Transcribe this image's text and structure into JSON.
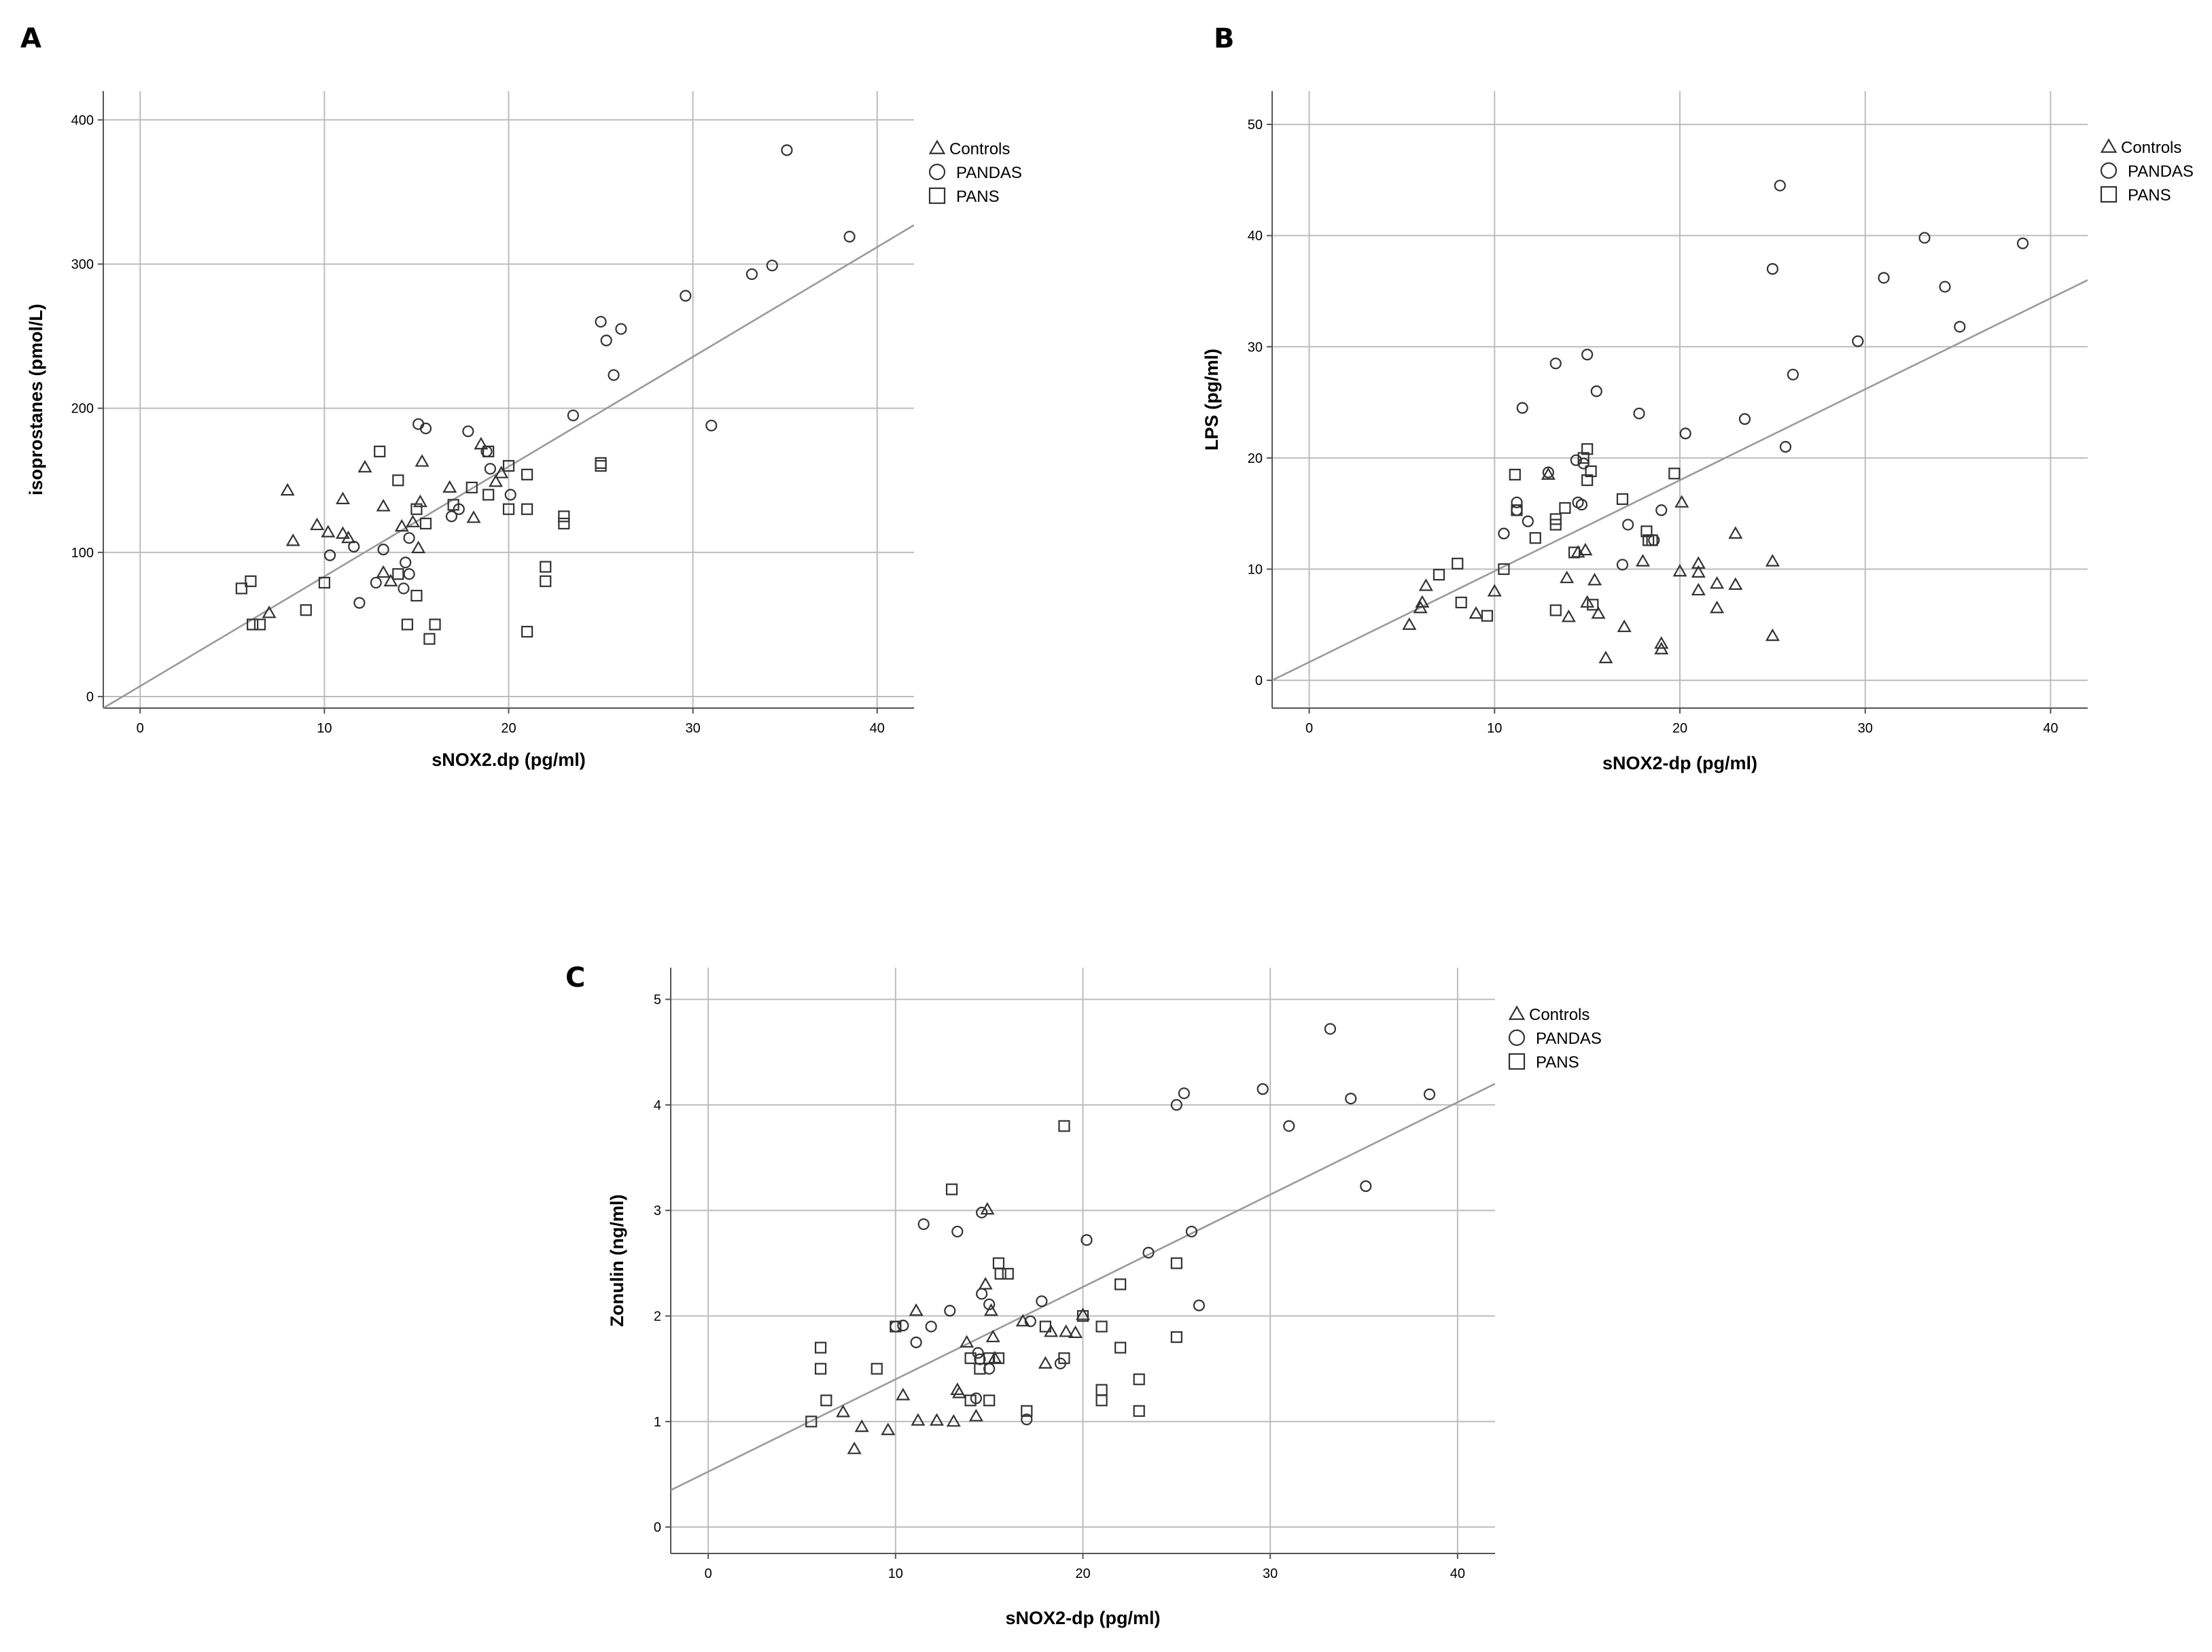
{
  "colors": {
    "marker": "#333333",
    "grid": "#bdbdbd",
    "fit_line": "#9a9a9a",
    "axis": "#555555"
  },
  "legend": {
    "items": [
      {
        "label": "Controls",
        "symbol": "triangle"
      },
      {
        "label": "PANDAS",
        "symbol": "circle"
      },
      {
        "label": "PANS",
        "symbol": "square"
      }
    ]
  },
  "chart_data": [
    {
      "panel": "A",
      "type": "scatter",
      "xlabel": "sNOX2.dp (pg/ml)",
      "ylabel": "isoprostanes (pmol/L)",
      "xlim": [
        -2,
        42
      ],
      "ylim": [
        -8,
        420
      ],
      "xticks": [
        0,
        10,
        20,
        30,
        40
      ],
      "yticks": [
        0,
        100,
        200,
        300,
        400
      ],
      "grid": true,
      "legend_position": "top-right",
      "fit_line": {
        "x": [
          -2,
          42
        ],
        "y": [
          -8,
          327
        ]
      },
      "series": [
        {
          "name": "Controls",
          "symbol": "triangle",
          "points": [
            [
              7,
              58
            ],
            [
              8,
              143
            ],
            [
              8.3,
              108
            ],
            [
              9.6,
              119
            ],
            [
              10.2,
              114
            ],
            [
              11,
              137
            ],
            [
              11,
              113
            ],
            [
              11.3,
              110
            ],
            [
              12.2,
              159
            ],
            [
              13.2,
              132
            ],
            [
              13.2,
              86
            ],
            [
              13.6,
              80
            ],
            [
              14.2,
              118
            ],
            [
              14.8,
              121
            ],
            [
              15.1,
              103
            ],
            [
              15.2,
              135
            ],
            [
              15.3,
              163
            ],
            [
              16.8,
              145
            ],
            [
              18.1,
              124
            ],
            [
              18.5,
              175
            ],
            [
              19.3,
              149
            ],
            [
              19.6,
              155
            ]
          ]
        },
        {
          "name": "PANDAS",
          "symbol": "circle",
          "points": [
            [
              10.3,
              98
            ],
            [
              11.6,
              104
            ],
            [
              11.9,
              65
            ],
            [
              12.8,
              79
            ],
            [
              13.2,
              102
            ],
            [
              14.3,
              75
            ],
            [
              14.4,
              93
            ],
            [
              14.6,
              110
            ],
            [
              14.6,
              85
            ],
            [
              15.1,
              189
            ],
            [
              15.5,
              186
            ],
            [
              16.9,
              125
            ],
            [
              17.3,
              130
            ],
            [
              17.8,
              184
            ],
            [
              18.8,
              170
            ],
            [
              19,
              158
            ],
            [
              20.1,
              140
            ],
            [
              23.5,
              195
            ],
            [
              25,
              260
            ],
            [
              25.3,
              247
            ],
            [
              25.7,
              223
            ],
            [
              26.1,
              255
            ],
            [
              29.6,
              278
            ],
            [
              31,
              188
            ],
            [
              33.2,
              293
            ],
            [
              34.3,
              299
            ],
            [
              35.1,
              379
            ],
            [
              38.5,
              319
            ]
          ]
        },
        {
          "name": "PANS",
          "symbol": "square",
          "points": [
            [
              5.5,
              75
            ],
            [
              6,
              80
            ],
            [
              6.1,
              50
            ],
            [
              6.5,
              50
            ],
            [
              9,
              60
            ],
            [
              10,
              79
            ],
            [
              13,
              170
            ],
            [
              14,
              150
            ],
            [
              14,
              85
            ],
            [
              14.5,
              50
            ],
            [
              15,
              130
            ],
            [
              15,
              70
            ],
            [
              15.5,
              120
            ],
            [
              15.7,
              40
            ],
            [
              16,
              50
            ],
            [
              17,
              133
            ],
            [
              18,
              145
            ],
            [
              18.9,
              170
            ],
            [
              18.9,
              140
            ],
            [
              20,
              160
            ],
            [
              20,
              130
            ],
            [
              21,
              154
            ],
            [
              21,
              130
            ],
            [
              21,
              45
            ],
            [
              22,
              90
            ],
            [
              22,
              80
            ],
            [
              23,
              125
            ],
            [
              23,
              120
            ],
            [
              25,
              162
            ],
            [
              25,
              160
            ]
          ]
        }
      ]
    },
    {
      "panel": "B",
      "type": "scatter",
      "xlabel": "sNOX2-dp (pg/ml)",
      "ylabel": "LPS (pg/ml)",
      "xlim": [
        -2,
        42
      ],
      "ylim": [
        -2.5,
        53
      ],
      "xticks": [
        0,
        10,
        20,
        30,
        40
      ],
      "yticks": [
        0,
        10,
        20,
        30,
        40,
        50
      ],
      "grid": true,
      "legend_position": "top-right",
      "fit_line": {
        "x": [
          -2,
          42
        ],
        "y": [
          0,
          36
        ]
      },
      "series": [
        {
          "name": "Controls",
          "symbol": "triangle",
          "points": [
            [
              5.4,
              5
            ],
            [
              6,
              6.5
            ],
            [
              6.1,
              7
            ],
            [
              6.3,
              8.5
            ],
            [
              9,
              6
            ],
            [
              10,
              8
            ],
            [
              12.9,
              18.5
            ],
            [
              13.9,
              9.2
            ],
            [
              14,
              5.7
            ],
            [
              14.5,
              11.5
            ],
            [
              14.9,
              11.7
            ],
            [
              15,
              7
            ],
            [
              15.4,
              9
            ],
            [
              15.6,
              6
            ],
            [
              16,
              2
            ],
            [
              17,
              4.8
            ],
            [
              18,
              10.7
            ],
            [
              19,
              2.8
            ],
            [
              19,
              3.3
            ],
            [
              20,
              9.8
            ],
            [
              20.1,
              16
            ],
            [
              21,
              10.5
            ],
            [
              21,
              9.7
            ],
            [
              21,
              8.1
            ],
            [
              22,
              8.7
            ],
            [
              22,
              6.5
            ],
            [
              23,
              13.2
            ],
            [
              23,
              8.6
            ],
            [
              25,
              10.7
            ],
            [
              25,
              4
            ]
          ]
        },
        {
          "name": "PANDAS",
          "symbol": "circle",
          "points": [
            [
              10.5,
              13.2
            ],
            [
              11.2,
              16
            ],
            [
              11.2,
              15.3
            ],
            [
              11.5,
              24.5
            ],
            [
              11.8,
              14.3
            ],
            [
              12.9,
              18.7
            ],
            [
              13.3,
              28.5
            ],
            [
              14.4,
              19.8
            ],
            [
              14.5,
              16
            ],
            [
              14.7,
              15.8
            ],
            [
              14.8,
              19.5
            ],
            [
              15,
              29.3
            ],
            [
              15.5,
              26
            ],
            [
              16.9,
              10.4
            ],
            [
              17.2,
              14
            ],
            [
              17.8,
              24
            ],
            [
              18.6,
              12.6
            ],
            [
              19,
              15.3
            ],
            [
              20.3,
              22.2
            ],
            [
              23.5,
              23.5
            ],
            [
              25,
              37
            ],
            [
              25.4,
              44.5
            ],
            [
              25.7,
              21
            ],
            [
              26.1,
              27.5
            ],
            [
              29.6,
              30.5
            ],
            [
              31,
              36.2
            ],
            [
              33.2,
              39.8
            ],
            [
              34.3,
              35.4
            ],
            [
              35.1,
              31.8
            ],
            [
              38.5,
              39.3
            ]
          ]
        },
        {
          "name": "PANS",
          "symbol": "square",
          "points": [
            [
              7,
              9.5
            ],
            [
              8,
              10.5
            ],
            [
              8.2,
              7
            ],
            [
              9.6,
              5.8
            ],
            [
              10.5,
              10
            ],
            [
              11.1,
              18.5
            ],
            [
              11.2,
              15.3
            ],
            [
              12.2,
              12.8
            ],
            [
              13.3,
              14.5
            ],
            [
              13.3,
              14
            ],
            [
              13.3,
              6.3
            ],
            [
              13.8,
              15.5
            ],
            [
              14.3,
              11.5
            ],
            [
              14.8,
              20
            ],
            [
              15,
              20.8
            ],
            [
              15,
              18
            ],
            [
              15.2,
              18.8
            ],
            [
              15.3,
              6.8
            ],
            [
              16.9,
              16.3
            ],
            [
              18.2,
              13.4
            ],
            [
              18.3,
              12.6
            ],
            [
              18.5,
              12.6
            ],
            [
              19.7,
              18.6
            ]
          ]
        }
      ]
    },
    {
      "panel": "C",
      "type": "scatter",
      "xlabel": "sNOX2-dp (pg/ml)",
      "ylabel": "Zonulin (ng/ml)",
      "xlim": [
        -2,
        42
      ],
      "ylim": [
        -0.25,
        5.3
      ],
      "xticks": [
        0,
        10,
        20,
        30,
        40
      ],
      "yticks": [
        0,
        1,
        2,
        3,
        4,
        5
      ],
      "grid": true,
      "legend_position": "top-right",
      "fit_line": {
        "x": [
          -2,
          42
        ],
        "y": [
          0.35,
          4.2
        ]
      },
      "series": [
        {
          "name": "Controls",
          "symbol": "triangle",
          "points": [
            [
              7.2,
              1.09
            ],
            [
              7.8,
              0.74
            ],
            [
              8.2,
              0.95
            ],
            [
              9.6,
              0.92
            ],
            [
              10.4,
              1.25
            ],
            [
              11.1,
              2.05
            ],
            [
              11.2,
              1.01
            ],
            [
              12.2,
              1.01
            ],
            [
              13.1,
              1
            ],
            [
              13.3,
              1.3
            ],
            [
              13.4,
              1.27
            ],
            [
              13.8,
              1.75
            ],
            [
              14.3,
              1.05
            ],
            [
              14.8,
              2.3
            ],
            [
              14.9,
              3.01
            ],
            [
              15.1,
              2.05
            ],
            [
              15.2,
              1.8
            ],
            [
              15.3,
              1.6
            ],
            [
              16.8,
              1.95
            ],
            [
              18,
              1.55
            ],
            [
              18.3,
              1.85
            ],
            [
              19.1,
              1.85
            ],
            [
              19.6,
              1.84
            ],
            [
              20,
              2.01
            ]
          ]
        },
        {
          "name": "PANDAS",
          "symbol": "circle",
          "points": [
            [
              10,
              1.9
            ],
            [
              10.4,
              1.91
            ],
            [
              11.1,
              1.75
            ],
            [
              11.5,
              2.87
            ],
            [
              11.9,
              1.9
            ],
            [
              12.9,
              2.05
            ],
            [
              13.3,
              2.8
            ],
            [
              14.3,
              1.22
            ],
            [
              14.4,
              1.65
            ],
            [
              14.5,
              1.59
            ],
            [
              14.6,
              2.21
            ],
            [
              14.6,
              2.98
            ],
            [
              15,
              2.11
            ],
            [
              15,
              1.5
            ],
            [
              17,
              1.02
            ],
            [
              17.2,
              1.95
            ],
            [
              17.8,
              2.14
            ],
            [
              18.8,
              1.55
            ],
            [
              20.2,
              2.72
            ],
            [
              23.5,
              2.6
            ],
            [
              25,
              4
            ],
            [
              25.4,
              4.11
            ],
            [
              25.8,
              2.8
            ],
            [
              26.2,
              2.1
            ],
            [
              29.6,
              4.15
            ],
            [
              31,
              3.8
            ],
            [
              33.2,
              4.72
            ],
            [
              34.3,
              4.06
            ],
            [
              35.1,
              3.23
            ],
            [
              38.5,
              4.1
            ]
          ]
        },
        {
          "name": "PANS",
          "symbol": "square",
          "points": [
            [
              5.5,
              1
            ],
            [
              6,
              1.7
            ],
            [
              6,
              1.5
            ],
            [
              6.3,
              1.2
            ],
            [
              9,
              1.5
            ],
            [
              10,
              1.9
            ],
            [
              13,
              3.2
            ],
            [
              14,
              1.6
            ],
            [
              14,
              1.2
            ],
            [
              14.5,
              1.5
            ],
            [
              15,
              1.6
            ],
            [
              15,
              1.2
            ],
            [
              15.5,
              1.6
            ],
            [
              15.5,
              2.5
            ],
            [
              15.6,
              2.4
            ],
            [
              16,
              2.4
            ],
            [
              17,
              1.1
            ],
            [
              18,
              1.9
            ],
            [
              19,
              3.8
            ],
            [
              19,
              1.6
            ],
            [
              20,
              2
            ],
            [
              21,
              1.9
            ],
            [
              21,
              1.3
            ],
            [
              21,
              1.2
            ],
            [
              22,
              2.3
            ],
            [
              22,
              1.7
            ],
            [
              23,
              1.4
            ],
            [
              23,
              1.1
            ],
            [
              25,
              2.5
            ],
            [
              25,
              1.8
            ]
          ]
        }
      ]
    }
  ]
}
